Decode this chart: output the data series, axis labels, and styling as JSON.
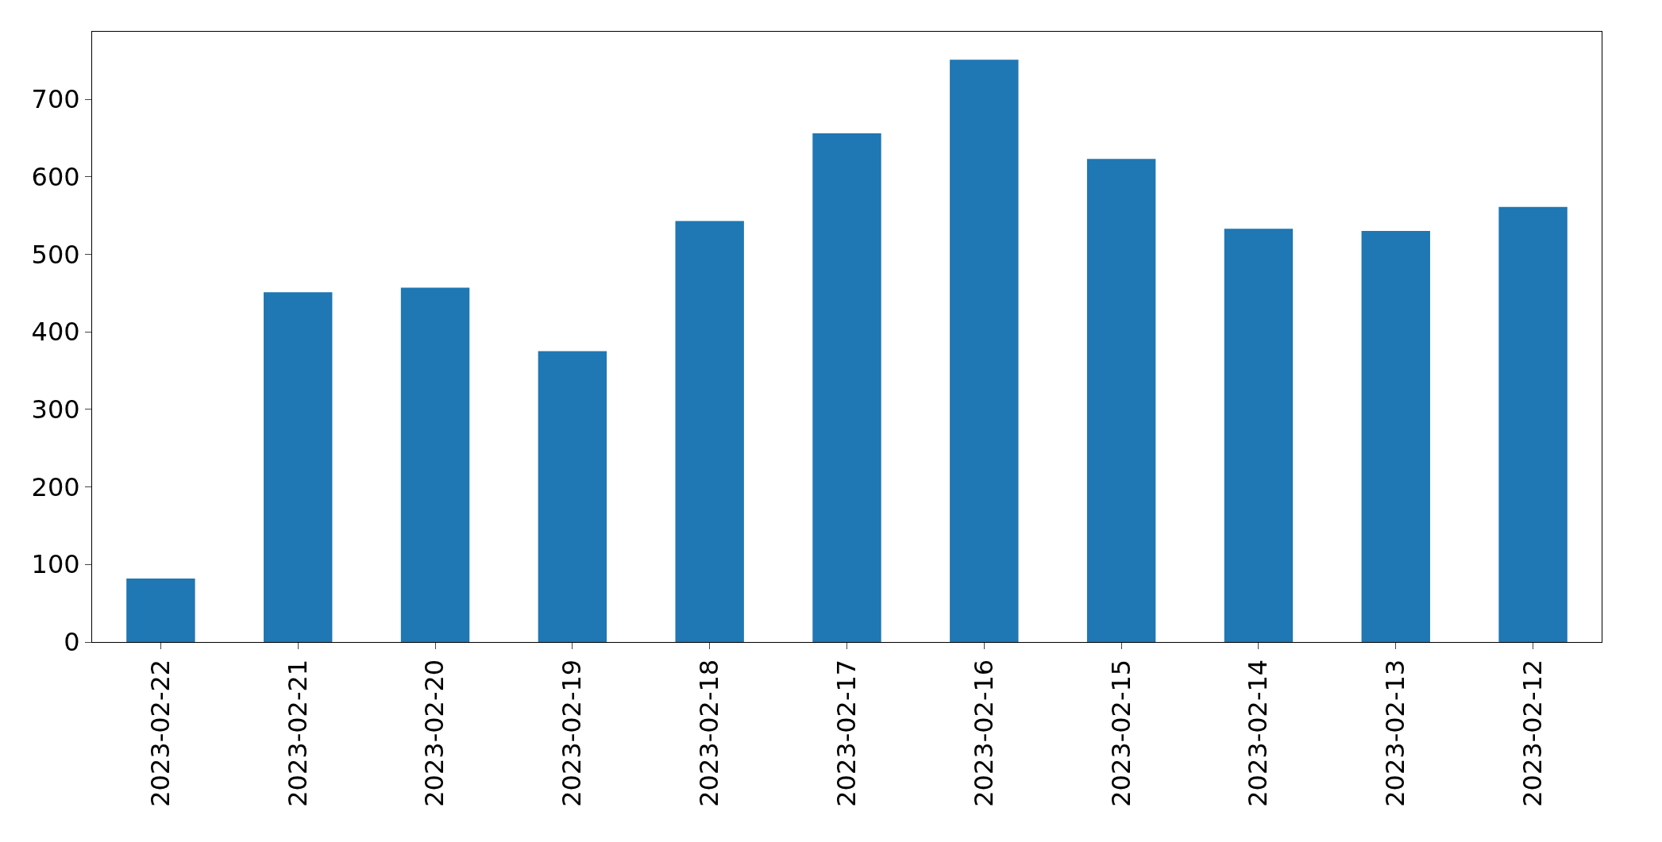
{
  "chart_data": {
    "type": "bar",
    "categories": [
      "2023-02-22",
      "2023-02-21",
      "2023-02-20",
      "2023-02-19",
      "2023-02-18",
      "2023-02-17",
      "2023-02-16",
      "2023-02-15",
      "2023-02-14",
      "2023-02-13",
      "2023-02-12"
    ],
    "values": [
      82,
      451,
      457,
      375,
      543,
      656,
      751,
      623,
      533,
      530,
      561
    ],
    "color": "#1f77b4",
    "ylim": [
      0,
      787
    ],
    "yticks": [
      0,
      100,
      200,
      300,
      400,
      500,
      600,
      700
    ]
  }
}
